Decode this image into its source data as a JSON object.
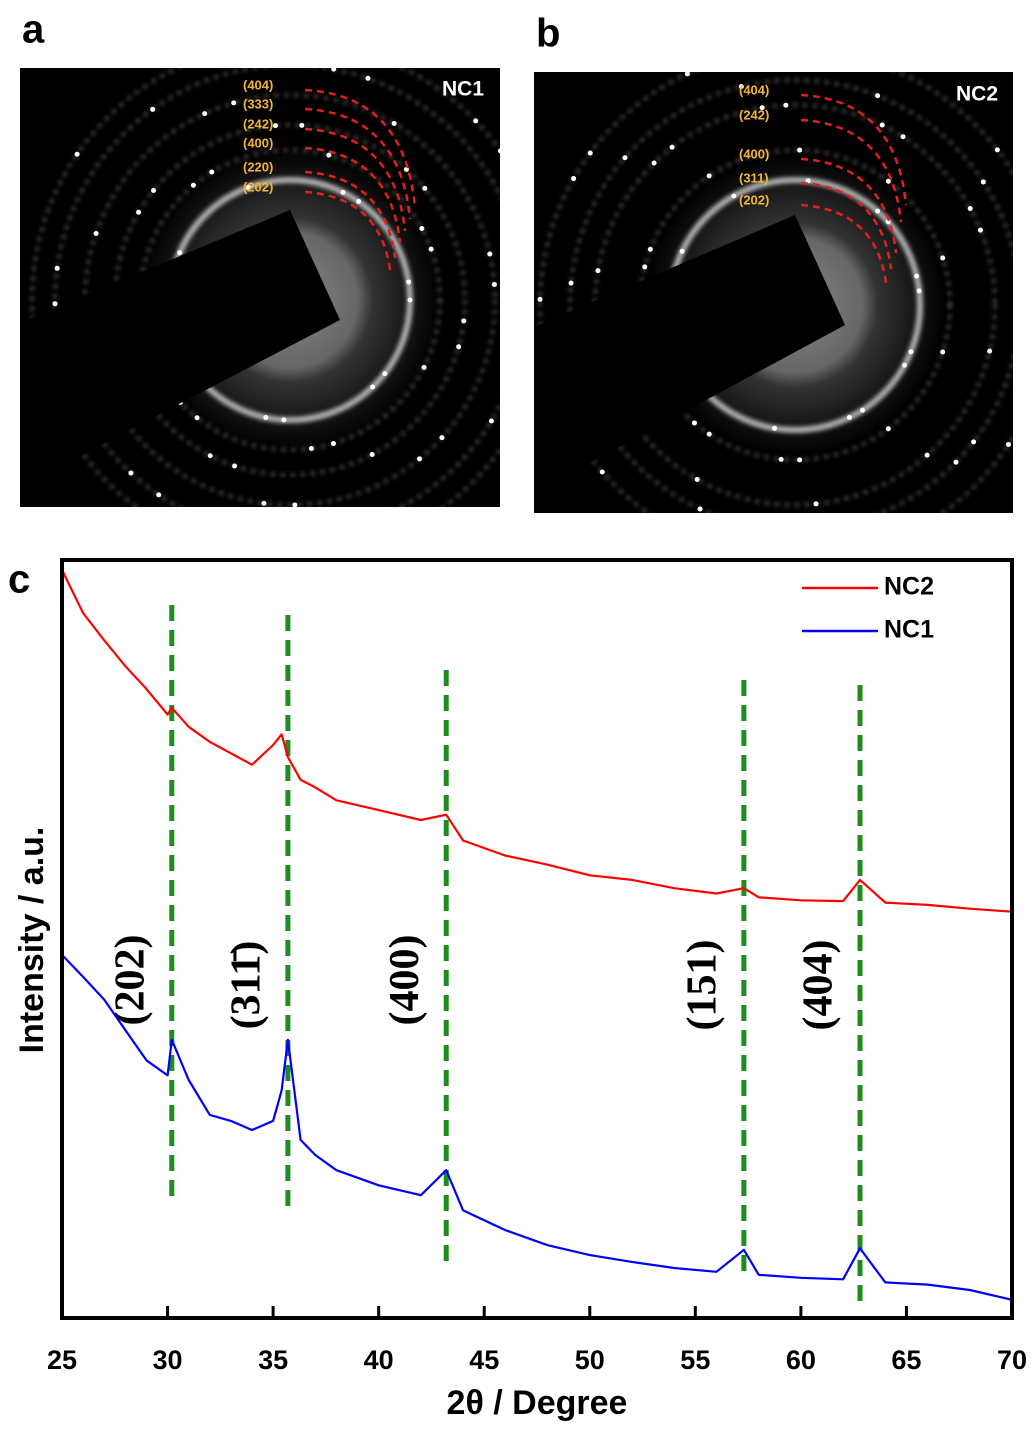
{
  "images": [
    {
      "panel": "a",
      "name": "NC1",
      "rings": [
        "(404)",
        "(333)",
        "(242)",
        "(400)",
        "(220)",
        "(202)"
      ]
    },
    {
      "panel": "b",
      "name": "NC2",
      "rings": [
        "(404)",
        "(242)",
        "(400)",
        "(311)",
        "(202)"
      ]
    }
  ],
  "chart_data": {
    "type": "line",
    "panel": "c",
    "xlabel": "2θ / Degree",
    "ylabel": "Intensity / a.u.",
    "x": [
      25,
      26,
      27,
      28,
      29,
      30,
      30.2,
      31,
      32,
      33,
      34,
      35,
      35.4,
      35.7,
      36.3,
      37,
      38,
      40,
      42,
      43.2,
      44,
      46,
      48,
      50,
      52,
      54,
      56,
      57.3,
      58,
      60,
      62,
      62.8,
      64,
      66,
      68,
      70
    ],
    "series": [
      {
        "name": "NC2",
        "color": "#ff0000",
        "values": [
          98.7,
          93,
          89.4,
          86,
          83,
          79.6,
          80.5,
          78,
          76,
          74.5,
          73,
          75.6,
          77,
          74,
          71,
          70,
          68.3,
          67,
          65.7,
          66.4,
          63,
          61,
          59.8,
          58.4,
          57.8,
          56.7,
          56,
          56.7,
          55.5,
          55.1,
          55,
          57.8,
          54.8,
          54.5,
          54,
          53.6
        ]
      },
      {
        "name": "NC1",
        "color": "#0000ff",
        "values": [
          47.9,
          45,
          42,
          38,
          34,
          32,
          36.7,
          31.4,
          26.8,
          26,
          24.8,
          26,
          30,
          36.7,
          23.5,
          21.5,
          19.5,
          17.5,
          16.2,
          19.5,
          14.2,
          11.6,
          9.6,
          8.3,
          7.4,
          6.6,
          6.1,
          9,
          5.7,
          5.3,
          5.1,
          9.2,
          4.7,
          4.4,
          3.7,
          2.4
        ]
      }
    ],
    "reference_lines": [
      {
        "x": 30.2,
        "label": "(202)"
      },
      {
        "x": 35.7,
        "label": "(311̄)"
      },
      {
        "x": 43.2,
        "label": "(400)"
      },
      {
        "x": 57.3,
        "label": "(151)"
      },
      {
        "x": 62.8,
        "label": "(404)"
      }
    ],
    "reference_color": "#1e8c1e",
    "xlim": [
      25,
      70
    ],
    "xticks": [
      25,
      30,
      35,
      40,
      45,
      50,
      55,
      60,
      65,
      70
    ],
    "ylim": [
      0,
      100
    ],
    "legend": "upper right"
  }
}
